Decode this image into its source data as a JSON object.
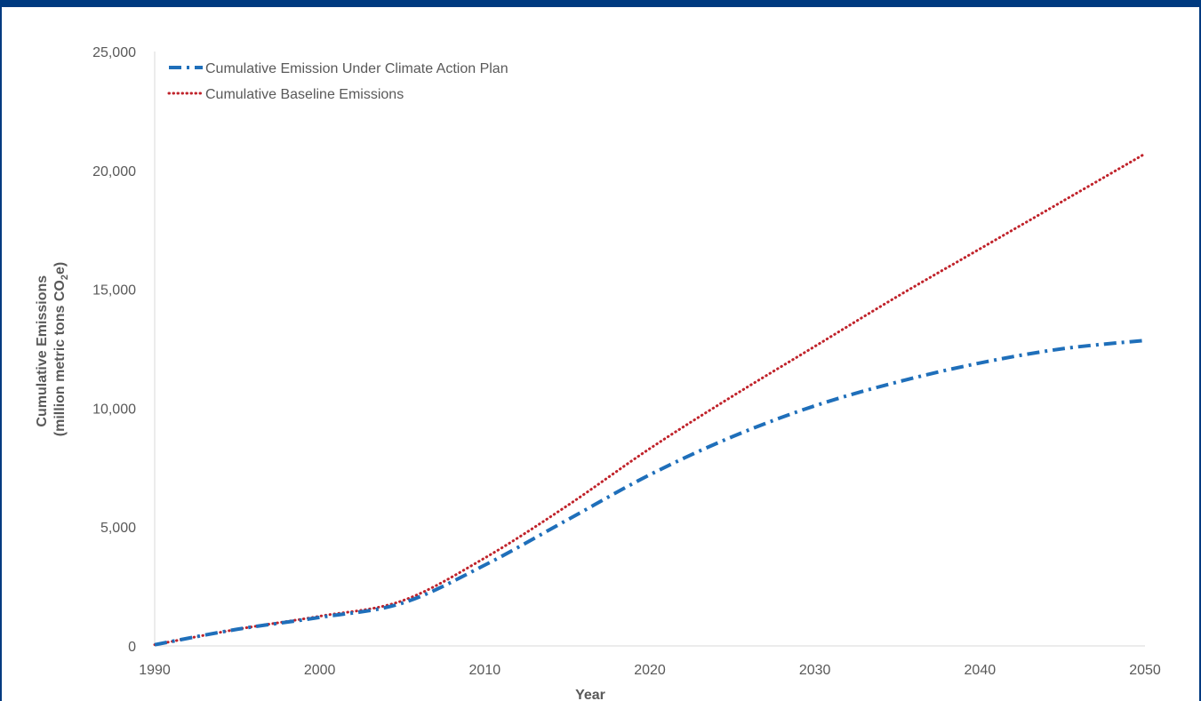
{
  "frame": {
    "accent_color": "#003a80"
  },
  "chart_data": {
    "type": "line",
    "xlabel": "Year",
    "ylabel_line1": "Cumulative Emissions",
    "ylabel_line2_pre": "(million metric tons CO",
    "ylabel_line2_sub": "2",
    "ylabel_line2_post": "e)",
    "xlim": [
      1990,
      2050
    ],
    "ylim": [
      0,
      25000
    ],
    "x_ticks": [
      1990,
      2000,
      2010,
      2020,
      2030,
      2040,
      2050
    ],
    "x_tick_labels": [
      "1990",
      "2000",
      "2010",
      "2020",
      "2030",
      "2040",
      "2050"
    ],
    "y_ticks": [
      0,
      5000,
      10000,
      15000,
      20000,
      25000
    ],
    "y_tick_labels": [
      "0",
      "5,000",
      "10,000",
      "15,000",
      "20,000",
      "25,000"
    ],
    "grid": false,
    "legend_position": "top-left",
    "series": [
      {
        "name": "Cumulative Emission Under Climate Action Plan",
        "color": "#1f6fba",
        "style": "dash-dot",
        "x": [
          1990,
          1995,
          2000,
          2005,
          2010,
          2015,
          2020,
          2025,
          2030,
          2035,
          2040,
          2045,
          2050
        ],
        "y": [
          50,
          700,
          1200,
          1800,
          3400,
          5300,
          7200,
          8800,
          10100,
          11100,
          11900,
          12500,
          12850
        ]
      },
      {
        "name": "Cumulative Baseline Emissions",
        "color": "#c0232b",
        "style": "dotted",
        "x": [
          1990,
          1995,
          2000,
          2005,
          2010,
          2015,
          2020,
          2025,
          2030,
          2035,
          2040,
          2045,
          2050
        ],
        "y": [
          50,
          700,
          1250,
          1900,
          3700,
          5900,
          8300,
          10500,
          12600,
          14700,
          16700,
          18700,
          20700
        ]
      }
    ]
  }
}
